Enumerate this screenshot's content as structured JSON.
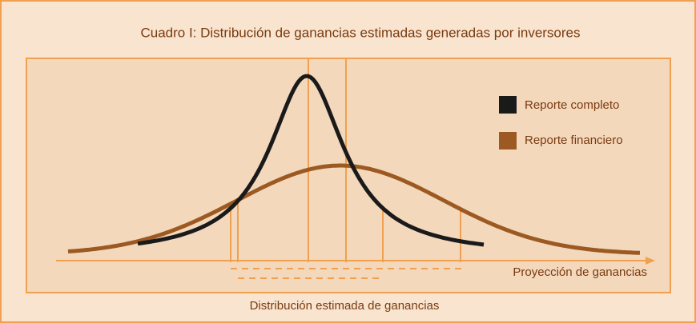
{
  "title": "Cuadro I: Distribución de ganancias estimadas generadas por inversores",
  "legend": [
    "Reporte completo",
    "Reporte financiero"
  ],
  "axis_label": "Proyección de ganancias",
  "caption": "Distribución estimada de ganancias"
}
